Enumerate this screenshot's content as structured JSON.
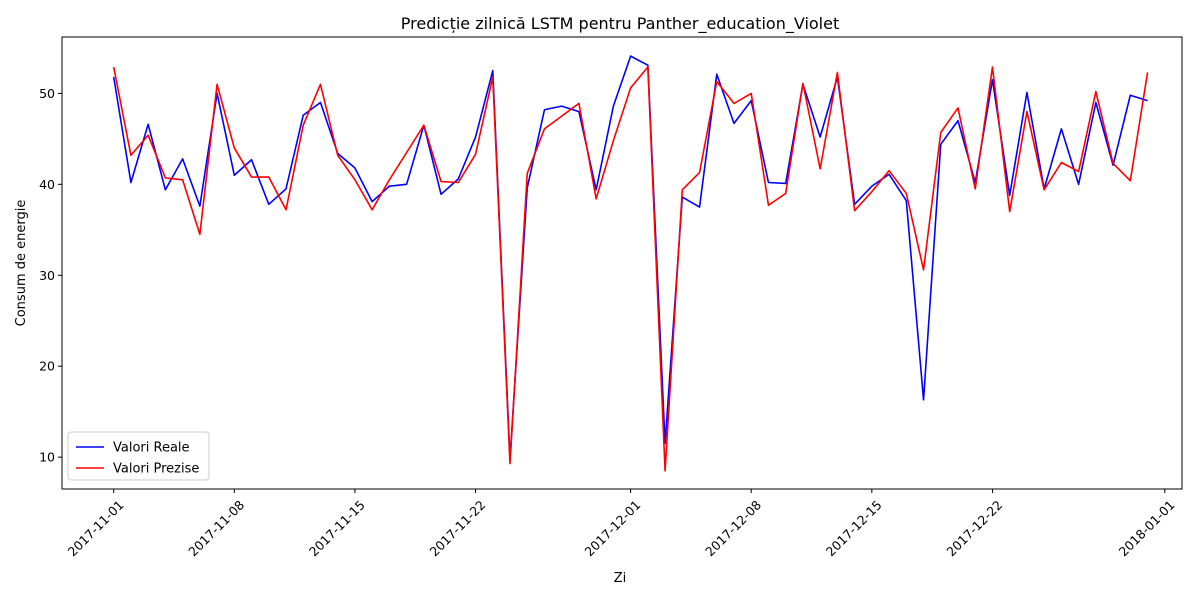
{
  "chart_data": {
    "type": "line",
    "title": "Predicție zilnică LSTM pentru Panther_education_Violet",
    "xlabel": "Zi",
    "ylabel": "Consum de energie",
    "x_start": "2017-11-01",
    "x_ticks": [
      "2017-11-01",
      "2017-11-08",
      "2017-11-15",
      "2017-11-22",
      "2017-12-01",
      "2017-12-08",
      "2017-12-15",
      "2017-12-22",
      "2018-01-01"
    ],
    "y_ticks": [
      10,
      20,
      30,
      40,
      50
    ],
    "xlim": [
      "2017-10-29",
      "2018-01-02"
    ],
    "ylim": [
      6.5,
      56.2
    ],
    "legend_position": "lower-left",
    "grid": false,
    "series": [
      {
        "name": "Valori Reale",
        "color": "#0000ff",
        "values": [
          51.8,
          40.2,
          46.6,
          39.4,
          42.8,
          37.6,
          50.0,
          41.0,
          42.7,
          37.8,
          39.5,
          47.6,
          49.0,
          43.4,
          41.8,
          38.1,
          39.8,
          40.0,
          46.5,
          38.9,
          40.6,
          45.2,
          52.5,
          9.8,
          39.6,
          48.2,
          48.6,
          48.0,
          39.4,
          48.6,
          54.1,
          53.1,
          11.5,
          38.6,
          37.5,
          52.1,
          46.7,
          49.2,
          40.2,
          40.1,
          51.0,
          45.2,
          51.8,
          37.8,
          39.8,
          41.1,
          38.2,
          16.3,
          44.4,
          47.0,
          40.2,
          51.5,
          38.8,
          50.1,
          39.5,
          46.1,
          40.0,
          49.0,
          42.1,
          49.8,
          49.2
        ]
      },
      {
        "name": "Valori Prezise",
        "color": "#ff0000",
        "values": [
          52.9,
          43.2,
          45.4,
          40.7,
          40.5,
          34.5,
          51.0,
          44.0,
          40.8,
          40.8,
          37.2,
          46.5,
          51.0,
          43.2,
          40.5,
          37.2,
          40.5,
          43.5,
          46.5,
          40.3,
          40.2,
          43.3,
          51.8,
          9.3,
          41.2,
          46.1,
          47.5,
          48.9,
          38.4,
          44.8,
          50.6,
          52.9,
          8.5,
          39.4,
          41.3,
          51.3,
          48.9,
          50.0,
          37.7,
          39.0,
          51.1,
          41.7,
          52.3,
          37.1,
          39.2,
          41.5,
          39.0,
          30.6,
          45.7,
          48.4,
          39.5,
          52.9,
          37.0,
          48.0,
          39.4,
          42.4,
          41.4,
          50.2,
          42.3,
          40.4,
          52.3
        ]
      }
    ]
  }
}
